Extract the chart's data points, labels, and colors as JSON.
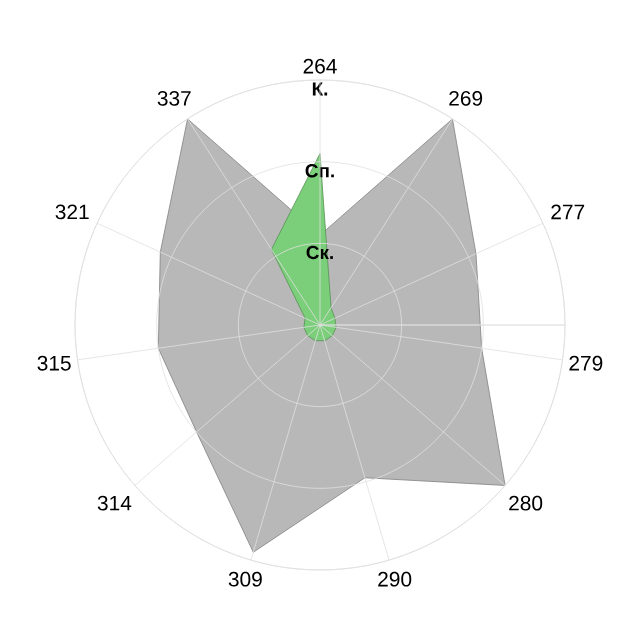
{
  "chart_data": {
    "type": "radar",
    "categories": [
      "264",
      "269",
      "277",
      "279",
      "280",
      "290",
      "309",
      "314",
      "315",
      "321",
      "337"
    ],
    "series": [
      {
        "color": "#b8b8b8",
        "values": [
          1.1,
          3,
          2.1,
          2,
          3,
          1.95,
          2.9,
          2,
          2,
          2.15,
          3
        ]
      },
      {
        "color": "#7ccf7a",
        "values": [
          2.1,
          0.25,
          0.2,
          0.2,
          0.2,
          0.2,
          0.2,
          0.2,
          0.2,
          0.2,
          1.1
        ]
      }
    ],
    "ylim": [
      0,
      3
    ],
    "yticks": [
      {
        "value": 1,
        "label": "Ск."
      },
      {
        "value": 2,
        "label": "Сп."
      },
      {
        "value": 3,
        "label": "К."
      }
    ],
    "grid": true
  }
}
